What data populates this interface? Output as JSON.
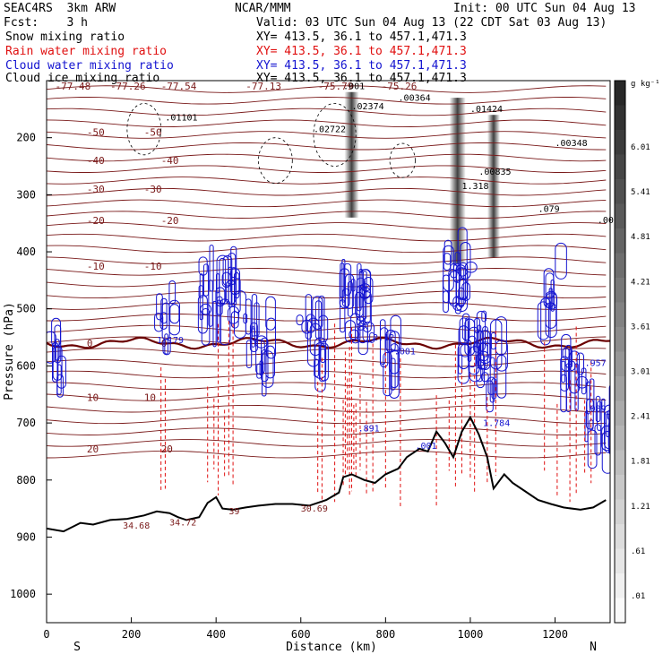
{
  "header": {
    "model": "SEAC4RS  3km ARW",
    "org": "NCAR/MMM",
    "init": "Init: 00 UTC Sun 04 Aug 13",
    "fcst": "Fcst:    3 h",
    "valid": "Valid: 03 UTC Sun 04 Aug 13 (22 CDT Sat 03 Aug 13)",
    "xy": "XY= 413.5, 36.1 to 457.1,471.3"
  },
  "legend": [
    {
      "label": "Snow mixing ratio",
      "color": "#000000"
    },
    {
      "label": "Rain water mixing ratio",
      "color": "#e01010"
    },
    {
      "label": "Cloud water mixing ratio",
      "color": "#1414d0"
    },
    {
      "label": "Cloud ice mixing ratio",
      "color": "#000000"
    }
  ],
  "chart_data": {
    "type": "cross-section contour",
    "xlabel": "Distance (km)",
    "ylabel": "Pressure (hPa)",
    "xlim": [
      0,
      1330
    ],
    "ylim": [
      1050,
      100
    ],
    "xticks": [
      0,
      200,
      400,
      600,
      800,
      1000,
      1200
    ],
    "yticks": [
      200,
      300,
      400,
      500,
      600,
      700,
      800,
      900,
      1000
    ],
    "left_end": "S",
    "right_end": "N",
    "colorbar": {
      "unit": "g kg⁻¹",
      "levels": [
        "6.01",
        "5.41",
        "4.81",
        "4.21",
        "3.61",
        "3.01",
        "2.41",
        "1.81",
        "1.21",
        ".61",
        ".01"
      ]
    },
    "temperature_isotherms": [
      {
        "label": "-50",
        "pressure": 190
      },
      {
        "label": "-40",
        "pressure": 240
      },
      {
        "label": "-30",
        "pressure": 290
      },
      {
        "label": "-20",
        "pressure": 345
      },
      {
        "label": "-10",
        "pressure": 425
      },
      {
        "label": "0",
        "pressure": 560
      },
      {
        "label": "10",
        "pressure": 655
      },
      {
        "label": "20",
        "pressure": 745
      }
    ],
    "top_labels": [
      "-77.48",
      "-77.26",
      "-77.54",
      "-77.13",
      "-75.79",
      "-75.26"
    ],
    "annotations": [
      ".001",
      ".01101",
      ".02374",
      ".00364",
      ".01424",
      ".02722",
      ".00348",
      ".00835",
      "1.318",
      ".079",
      ".001",
      "1.179",
      "2.12",
      ".001",
      ".957",
      ".089",
      "1.784",
      ".891",
      ".001",
      "30.69",
      "34.68",
      "34.72",
      "39"
    ],
    "terrain_pressure": [
      [
        0,
        885
      ],
      [
        40,
        890
      ],
      [
        80,
        875
      ],
      [
        110,
        878
      ],
      [
        150,
        870
      ],
      [
        190,
        868
      ],
      [
        230,
        862
      ],
      [
        260,
        855
      ],
      [
        290,
        858
      ],
      [
        310,
        865
      ],
      [
        330,
        870
      ],
      [
        360,
        865
      ],
      [
        380,
        840
      ],
      [
        400,
        830
      ],
      [
        415,
        850
      ],
      [
        440,
        852
      ],
      [
        470,
        848
      ],
      [
        500,
        845
      ],
      [
        540,
        842
      ],
      [
        580,
        842
      ],
      [
        620,
        845
      ],
      [
        660,
        835
      ],
      [
        690,
        822
      ],
      [
        700,
        795
      ],
      [
        720,
        790
      ],
      [
        750,
        800
      ],
      [
        775,
        805
      ],
      [
        800,
        790
      ],
      [
        830,
        780
      ],
      [
        850,
        760
      ],
      [
        880,
        745
      ],
      [
        900,
        750
      ],
      [
        920,
        715
      ],
      [
        940,
        735
      ],
      [
        960,
        760
      ],
      [
        980,
        715
      ],
      [
        1000,
        690
      ],
      [
        1020,
        720
      ],
      [
        1040,
        760
      ],
      [
        1055,
        815
      ],
      [
        1080,
        790
      ],
      [
        1100,
        805
      ],
      [
        1130,
        820
      ],
      [
        1160,
        835
      ],
      [
        1190,
        842
      ],
      [
        1220,
        848
      ],
      [
        1260,
        852
      ],
      [
        1290,
        848
      ],
      [
        1320,
        835
      ]
    ]
  }
}
